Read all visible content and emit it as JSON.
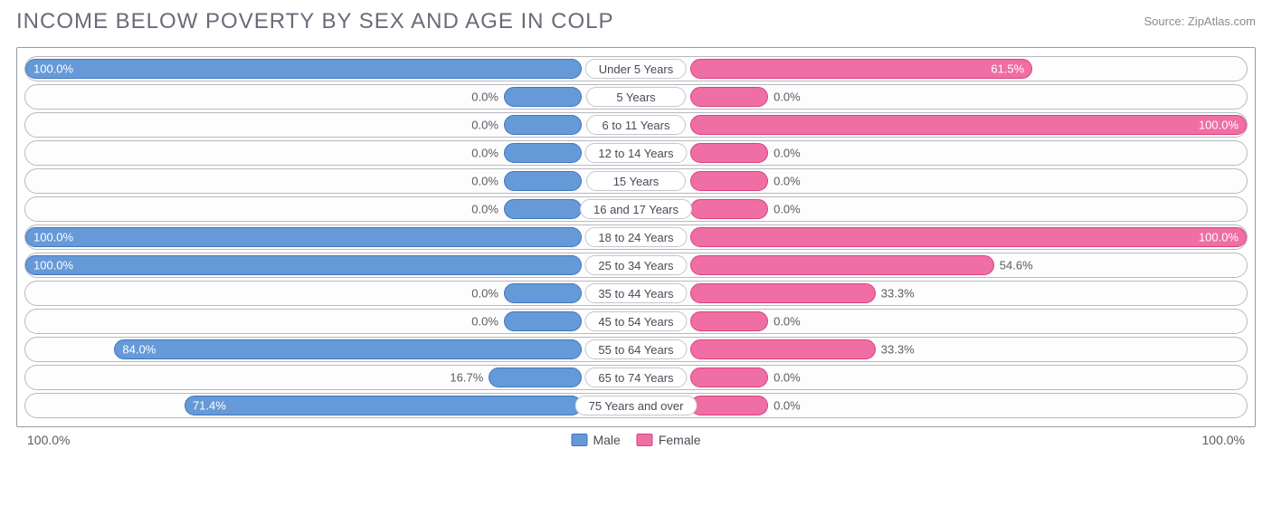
{
  "title": "INCOME BELOW POVERTY BY SEX AND AGE IN COLP",
  "source": "Source: ZipAtlas.com",
  "chart": {
    "type": "population-pyramid",
    "background_color": "#ffffff",
    "border_color": "#9a9aa5",
    "row_border_color": "#b8b8c2",
    "male_color": "#6699d8",
    "male_border": "#3f77bf",
    "female_color": "#ef6ea4",
    "female_border": "#d9427f",
    "text_color": "#5a5a65",
    "inside_text_color": "#ffffff",
    "min_bar_pct": 14,
    "axis": {
      "left": "100.0%",
      "right": "100.0%"
    },
    "legend": [
      {
        "label": "Male",
        "color": "#6699d8"
      },
      {
        "label": "Female",
        "color": "#ef6ea4"
      }
    ],
    "rows": [
      {
        "category": "Under 5 Years",
        "male": 100.0,
        "male_label": "100.0%",
        "female": 61.5,
        "female_label": "61.5%"
      },
      {
        "category": "5 Years",
        "male": 0.0,
        "male_label": "0.0%",
        "female": 0.0,
        "female_label": "0.0%"
      },
      {
        "category": "6 to 11 Years",
        "male": 0.0,
        "male_label": "0.0%",
        "female": 100.0,
        "female_label": "100.0%"
      },
      {
        "category": "12 to 14 Years",
        "male": 0.0,
        "male_label": "0.0%",
        "female": 0.0,
        "female_label": "0.0%"
      },
      {
        "category": "15 Years",
        "male": 0.0,
        "male_label": "0.0%",
        "female": 0.0,
        "female_label": "0.0%"
      },
      {
        "category": "16 and 17 Years",
        "male": 0.0,
        "male_label": "0.0%",
        "female": 0.0,
        "female_label": "0.0%"
      },
      {
        "category": "18 to 24 Years",
        "male": 100.0,
        "male_label": "100.0%",
        "female": 100.0,
        "female_label": "100.0%"
      },
      {
        "category": "25 to 34 Years",
        "male": 100.0,
        "male_label": "100.0%",
        "female": 54.6,
        "female_label": "54.6%"
      },
      {
        "category": "35 to 44 Years",
        "male": 0.0,
        "male_label": "0.0%",
        "female": 33.3,
        "female_label": "33.3%"
      },
      {
        "category": "45 to 54 Years",
        "male": 0.0,
        "male_label": "0.0%",
        "female": 0.0,
        "female_label": "0.0%"
      },
      {
        "category": "55 to 64 Years",
        "male": 84.0,
        "male_label": "84.0%",
        "female": 33.3,
        "female_label": "33.3%"
      },
      {
        "category": "65 to 74 Years",
        "male": 16.7,
        "male_label": "16.7%",
        "female": 0.0,
        "female_label": "0.0%"
      },
      {
        "category": "75 Years and over",
        "male": 71.4,
        "male_label": "71.4%",
        "female": 0.0,
        "female_label": "0.0%"
      }
    ]
  }
}
